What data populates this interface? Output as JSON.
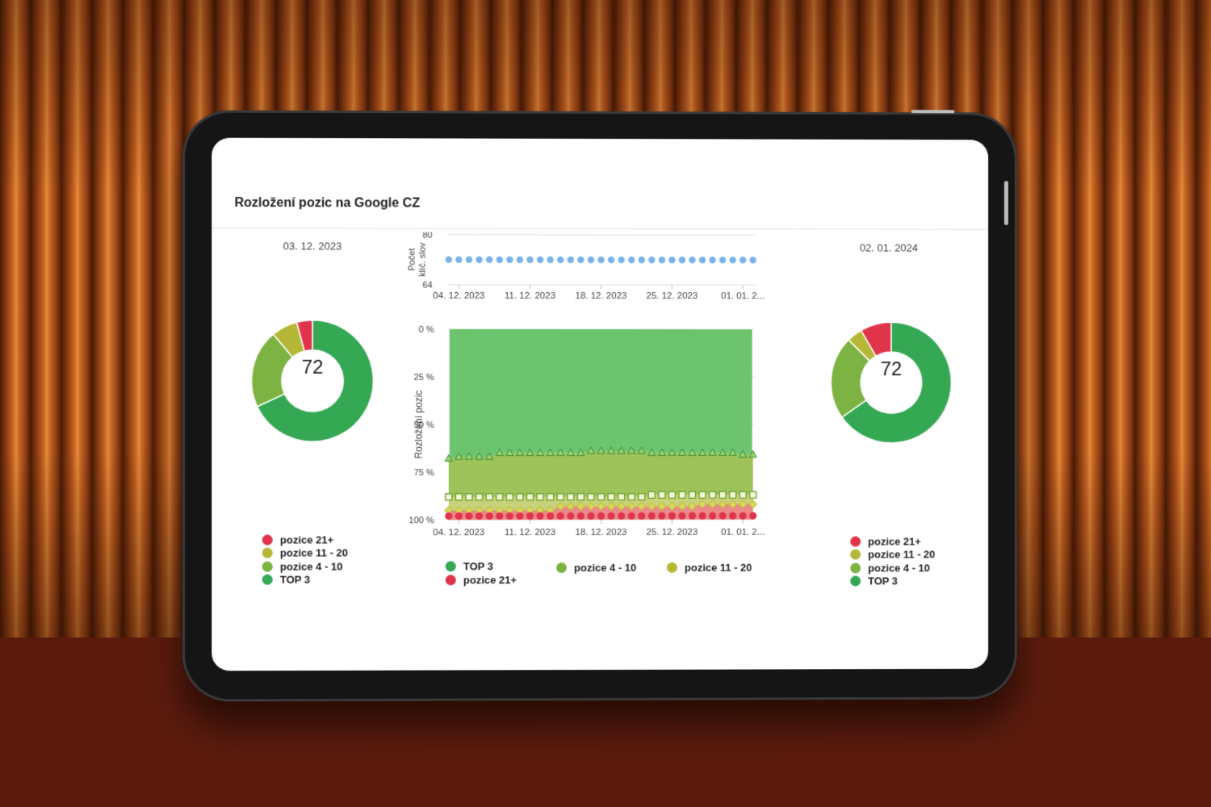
{
  "title": "Rozložení pozic na Google CZ",
  "colors": {
    "top3": "#34a853",
    "p4_10": "#7cb342",
    "p11_20": "#b5b836",
    "p21": "#e0344b",
    "keywords": "#7ab3ea",
    "area_top3": "#6cc46f",
    "area_p4_10": "#9dc35a"
  },
  "left_panel": {
    "date": "03. 12. 2023",
    "total": "72",
    "legend": [
      {
        "label": "pozice 21+",
        "color": "#e0344b"
      },
      {
        "label": "pozice 11 - 20",
        "color": "#b5b836"
      },
      {
        "label": "pozice 4 - 10",
        "color": "#7cb342"
      },
      {
        "label": "TOP 3",
        "color": "#34a853"
      }
    ]
  },
  "right_panel": {
    "date": "02. 01. 2024",
    "total": "72",
    "legend": [
      {
        "label": "pozice 21+",
        "color": "#e0344b"
      },
      {
        "label": "pozice 11 - 20",
        "color": "#b5b836"
      },
      {
        "label": "pozice 4 - 10",
        "color": "#7cb342"
      },
      {
        "label": "TOP 3",
        "color": "#34a853"
      }
    ]
  },
  "main_legend": [
    {
      "label": "TOP 3",
      "color": "#34a853"
    },
    {
      "label": "pozice 4 - 10",
      "color": "#7cb342"
    },
    {
      "label": "pozice 11 - 20",
      "color": "#b5b836"
    },
    {
      "label": "pozice 21+",
      "color": "#e0344b"
    }
  ],
  "chart_data": [
    {
      "type": "pie",
      "subtype": "donut",
      "title": "03. 12. 2023",
      "center_label": "72",
      "categories": [
        "TOP 3",
        "pozice 4 - 10",
        "pozice 11 - 20",
        "pozice 21+"
      ],
      "values": [
        49,
        15,
        5,
        3
      ]
    },
    {
      "type": "line",
      "ylabel": "Počet klíč. slov",
      "ylim": [
        64,
        80
      ],
      "ytick_labels": [
        "80",
        "64"
      ],
      "xtick_labels": [
        "04. 12. 2023",
        "11. 12. 2023",
        "18. 12. 2023",
        "25. 12. 2023",
        "01. 01. 2..."
      ],
      "x_start": "2023-12-03",
      "x_end": "2024-01-02",
      "series": [
        {
          "name": "Počet klíč. slov",
          "values": [
            72,
            72,
            72,
            72,
            72,
            72,
            72,
            72,
            72,
            72,
            72,
            72,
            72,
            72,
            72,
            72,
            72,
            72,
            72,
            72,
            72,
            72,
            72,
            72,
            72,
            72,
            72,
            72,
            72,
            72,
            72
          ]
        }
      ]
    },
    {
      "type": "area",
      "stacked": true,
      "ylabel": "Rozložení pozic",
      "ylim": [
        0,
        100
      ],
      "ytick_labels": [
        "0 %",
        "25 %",
        "50 %",
        "75 %",
        "100 %"
      ],
      "xtick_labels": [
        "04. 12. 2023",
        "11. 12. 2023",
        "18. 12. 2023",
        "25. 12. 2023",
        "01. 01. 2..."
      ],
      "x_start": "2023-12-03",
      "x_end": "2024-01-02",
      "series": [
        {
          "name": "TOP 3",
          "values": [
            68,
            67,
            67,
            67,
            67,
            65,
            65,
            65,
            65,
            65,
            65,
            65,
            65,
            65,
            64,
            64,
            64,
            64,
            64,
            64,
            65,
            65,
            65,
            65,
            65,
            65,
            65,
            65,
            65,
            66,
            66
          ]
        },
        {
          "name": "pozice 4 - 10",
          "values": [
            20,
            21,
            21,
            21,
            21,
            23,
            23,
            23,
            23,
            23,
            23,
            23,
            23,
            23,
            24,
            24,
            24,
            24,
            24,
            24,
            22,
            22,
            22,
            22,
            22,
            22,
            22,
            22,
            22,
            21,
            21
          ]
        },
        {
          "name": "pozice 11 - 20",
          "values": [
            7,
            7,
            7,
            7,
            7,
            7,
            7,
            7,
            7,
            7,
            7,
            5,
            5,
            5,
            5,
            5,
            5,
            5,
            5,
            5,
            6,
            6,
            6,
            6,
            6,
            5,
            5,
            5,
            5,
            5,
            5
          ]
        },
        {
          "name": "pozice 21+",
          "values": [
            5,
            5,
            5,
            5,
            5,
            5,
            5,
            5,
            5,
            5,
            5,
            7,
            7,
            7,
            7,
            7,
            7,
            7,
            7,
            7,
            7,
            7,
            7,
            7,
            7,
            8,
            8,
            8,
            8,
            8,
            8
          ]
        }
      ]
    },
    {
      "type": "pie",
      "subtype": "donut",
      "title": "02. 01. 2024",
      "center_label": "72",
      "categories": [
        "TOP 3",
        "pozice 4 - 10",
        "pozice 11 - 20",
        "pozice 21+"
      ],
      "values": [
        47,
        16,
        3,
        6
      ]
    }
  ]
}
